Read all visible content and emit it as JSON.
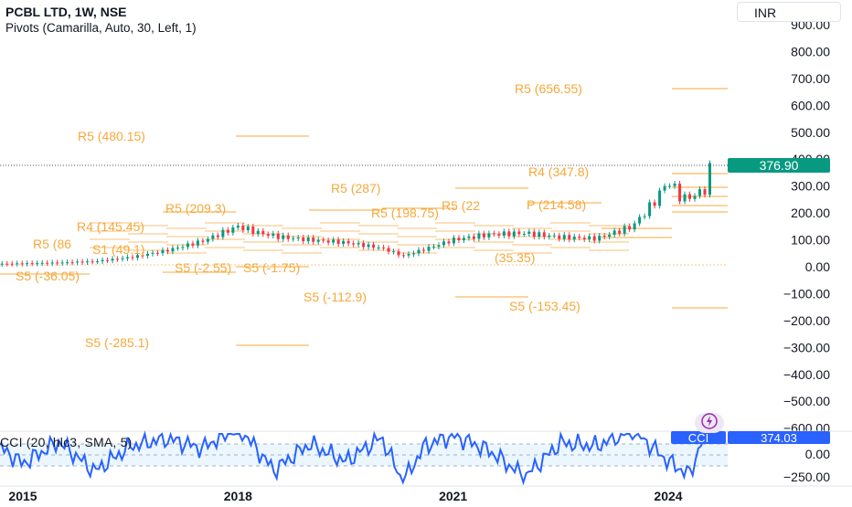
{
  "header": {
    "symbol_line": "PCBL LTD, 1W, NSE",
    "indicator_line": "Pivots (Camarilla, Auto, 30, Left, 1)",
    "currency_label": "INR"
  },
  "cci_panel": {
    "legend": "CCI (20, hlc3, SMA, 5)",
    "badge_label": "CCI",
    "badge_value": "374.03",
    "ticks": [
      "0.00",
      "−250.00"
    ]
  },
  "price_panel": {
    "last_price_label": "376.90",
    "y_ticks": [
      "900.00",
      "800.00",
      "700.00",
      "600.00",
      "500.00",
      "400.00",
      "300.00",
      "200.00",
      "100.00",
      "0.00",
      "−100.00",
      "−200.00",
      "−300.00",
      "−400.00",
      "−500.00",
      "−600.00"
    ]
  },
  "x_axis_labels": [
    "2015",
    "2018",
    "2021",
    "2024"
  ],
  "pivot_labels": [
    "R5 (480.15)",
    "R5 (656.55)",
    "R5 (287)",
    "R5 (209.3)",
    "R5 (198.75)",
    "R4 (347.8)",
    "R4 (145.45)",
    "R5 (86",
    "S5 (-36.05)",
    "S5 (-2.55)",
    "S5 (-1.75)",
    "S5 (-112.9)",
    "S5 (-153.45)",
    "S5 (-285.1)",
    "S1 (49.1)",
    "P (214.58)",
    "(35.35)",
    "R5 (22"
  ],
  "chart_data": {
    "type": "line",
    "description_x": "weekly candles",
    "x_labels": [
      "2015",
      "2018",
      "2021",
      "2024"
    ],
    "price_series": {
      "name": "PCBL LTD",
      "x": [
        2014.5,
        2015.0,
        2015.5,
        2016.0,
        2016.5,
        2017.0,
        2017.5,
        2018.0,
        2018.3,
        2018.6,
        2019.0,
        2019.5,
        2020.0,
        2020.3,
        2020.6,
        2021.0,
        2021.5,
        2022.0,
        2022.5,
        2023.0,
        2023.5,
        2023.8,
        2024.0,
        2024.2,
        2024.5,
        2024.6
      ],
      "y": [
        10,
        12,
        15,
        20,
        35,
        60,
        95,
        150,
        125,
        110,
        100,
        90,
        70,
        40,
        65,
        100,
        120,
        125,
        110,
        105,
        150,
        240,
        320,
        250,
        280,
        376.9
      ]
    },
    "cci_series": {
      "name": "CCI",
      "x": [
        2014.5,
        2015.0,
        2015.5,
        2016.0,
        2016.5,
        2017.0,
        2017.5,
        2018.0,
        2018.5,
        2019.0,
        2019.5,
        2020.0,
        2020.3,
        2020.6,
        2021.0,
        2021.5,
        2022.0,
        2022.5,
        2023.0,
        2023.5,
        2024.0,
        2024.3,
        2024.6
      ],
      "y": [
        150,
        -80,
        120,
        -150,
        80,
        150,
        60,
        260,
        -140,
        100,
        -60,
        160,
        -250,
        80,
        180,
        40,
        -200,
        110,
        80,
        230,
        -60,
        -180,
        374.03
      ]
    },
    "ylim": [
      -600,
      950
    ],
    "cci_ylim": [
      -300,
      400
    ],
    "last_price": 376.9,
    "cci_value": 374.03,
    "grid": false
  }
}
